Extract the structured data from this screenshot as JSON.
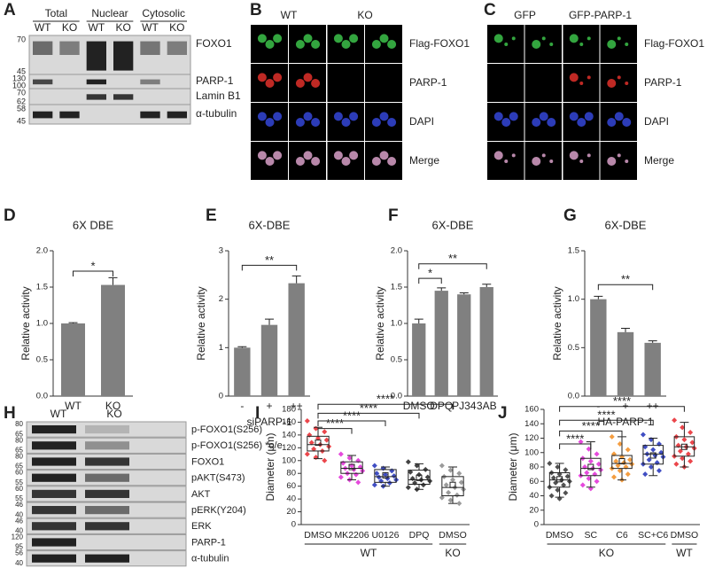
{
  "panel_labels": [
    "A",
    "B",
    "C",
    "D",
    "E",
    "F",
    "G",
    "H",
    "I",
    "J"
  ],
  "blot_A": {
    "headers": [
      "Total",
      "Nuclear",
      "Cytosolic"
    ],
    "lanes": [
      "WT",
      "KO",
      "WT",
      "KO",
      "WT",
      "KO"
    ],
    "rows": [
      {
        "label": "FOXO1",
        "markers": [
          70,
          45
        ]
      },
      {
        "label": "PARP-1",
        "markers": [
          130,
          100
        ]
      },
      {
        "label": "Lamin B1",
        "markers": [
          70,
          62
        ]
      },
      {
        "label": "α-tubulin",
        "markers": [
          58,
          45
        ]
      }
    ]
  },
  "images_B": {
    "columns": [
      "WT",
      "KO"
    ],
    "rows": [
      "Flag-FOXO1",
      "PARP-1",
      "DAPI",
      "Merge"
    ]
  },
  "images_C": {
    "columns": [
      "GFP",
      "GFP-PARP-1"
    ],
    "rows": [
      "Flag-FOXO1",
      "PARP-1",
      "DAPI",
      "Merge"
    ]
  },
  "blot_H": {
    "lanes": [
      "WT",
      "KO"
    ],
    "rows": [
      {
        "label": "p-FOXO1(S256)",
        "markers": [
          80,
          65
        ]
      },
      {
        "label": "p-FOXO1(S256) *o/e",
        "markers": [
          80,
          65
        ]
      },
      {
        "label": "FOXO1",
        "markers": [
          80,
          65
        ]
      },
      {
        "label": "pAKT(S473)",
        "markers": [
          60,
          55
        ]
      },
      {
        "label": "AKT",
        "markers": [
          60,
          55
        ]
      },
      {
        "label": "pERK(Y204)",
        "markers": [
          46,
          40
        ]
      },
      {
        "label": "ERK",
        "markers": [
          46,
          40
        ]
      },
      {
        "label": "PARP-1",
        "markers": [
          120,
          95
        ]
      },
      {
        "label": "α-tubulin",
        "markers": [
          56,
          40
        ]
      }
    ]
  },
  "chart_data": [
    {
      "type": "bar",
      "title": "6X DBE",
      "ylabel": "Relative activity",
      "categories": [
        "WT",
        "KO"
      ],
      "values": [
        1.0,
        1.53
      ],
      "errors": [
        0.01,
        0.1
      ],
      "color": "#808080",
      "ylim": [
        0,
        2.0
      ],
      "yticks": [
        {
          "value": 0,
          "label": "0.0"
        },
        {
          "value": 0.5,
          "label": "0.5"
        },
        {
          "value": 1.0,
          "label": "1.0"
        },
        {
          "value": 1.5,
          "label": "1.5"
        },
        {
          "value": 2.0,
          "label": "2.0"
        }
      ],
      "annotations": [
        "*"
      ]
    },
    {
      "type": "bar",
      "title": "6X-DBE",
      "ylabel": "Relative activity",
      "xlabel": "siPARP-1",
      "categories": [
        "-",
        "+",
        "++"
      ],
      "values": [
        1.0,
        1.47,
        2.33
      ],
      "errors": [
        0.02,
        0.12,
        0.15
      ],
      "color": "#808080",
      "ylim": [
        0,
        3
      ],
      "yticks": [
        0,
        1,
        2,
        3
      ],
      "annotations": [
        "**"
      ]
    },
    {
      "type": "bar",
      "title": "6X-DBE",
      "ylabel": "Relative activity",
      "categories": [
        "DMSO",
        "DPQ",
        "PJ34",
        "3AB"
      ],
      "values": [
        1.0,
        1.45,
        1.4,
        1.5
      ],
      "errors": [
        0.06,
        0.04,
        0.02,
        0.04
      ],
      "color": "#808080",
      "ylim": [
        0,
        2.0
      ],
      "yticks": [
        {
          "value": 0,
          "label": "0.0"
        },
        {
          "value": 0.5,
          "label": "0.5"
        },
        {
          "value": 1.0,
          "label": "1.0"
        },
        {
          "value": 1.5,
          "label": "1.5"
        },
        {
          "value": 2.0,
          "label": "2.0"
        }
      ],
      "annotations": [
        "*",
        "**"
      ]
    },
    {
      "type": "bar",
      "title": "6X-DBE",
      "ylabel": "Relative activity",
      "xlabel": "HA-PARP-1",
      "categories": [
        "-",
        "+",
        "++"
      ],
      "values": [
        1.0,
        0.66,
        0.55
      ],
      "errors": [
        0.03,
        0.04,
        0.02
      ],
      "color": "#808080",
      "ylim": [
        0,
        1.5
      ],
      "yticks": [
        {
          "value": 0,
          "label": "0.0"
        },
        {
          "value": 0.5,
          "label": "0.5"
        },
        {
          "value": 1.0,
          "label": "1.0"
        },
        {
          "value": 1.5,
          "label": "1.5"
        }
      ],
      "annotations": [
        "**"
      ]
    },
    {
      "type": "box",
      "ylabel": "Diameter (μm)",
      "categories": [
        "DMSO",
        "MK2206",
        "U0126",
        "DPQ",
        "DMSO"
      ],
      "groups": [
        "WT",
        "KO"
      ],
      "ylim": [
        0,
        180
      ],
      "yticks": [
        0,
        20,
        40,
        60,
        80,
        100,
        120,
        140,
        160,
        180
      ],
      "annotations": [
        "****",
        "****",
        "****",
        "****"
      ],
      "boxes": [
        {
          "color": "#e8262b",
          "whislo": 103,
          "q1": 115,
          "med": 125,
          "q3": 138,
          "whishi": 152,
          "mean": 128,
          "points": [
            162,
            150,
            145,
            140,
            135,
            132,
            128,
            125,
            122,
            118,
            115,
            110,
            105,
            100
          ]
        },
        {
          "color": "#e02ad6",
          "whislo": 70,
          "q1": 80,
          "med": 88,
          "q3": 98,
          "whishi": 108,
          "mean": 90,
          "points": [
            110,
            104,
            100,
            96,
            92,
            90,
            88,
            86,
            84,
            80,
            78,
            74,
            70,
            66
          ]
        },
        {
          "color": "#1f2fb8",
          "whislo": 60,
          "q1": 66,
          "med": 75,
          "q3": 86,
          "whishi": 90,
          "mean": 77,
          "points": [
            92,
            88,
            84,
            80,
            78,
            76,
            74,
            72,
            70,
            68,
            65,
            62,
            60
          ]
        },
        {
          "color": "#222222",
          "whislo": 55,
          "q1": 63,
          "med": 70,
          "q3": 85,
          "whishi": 95,
          "mean": 73,
          "points": [
            98,
            92,
            86,
            82,
            78,
            74,
            72,
            70,
            68,
            65,
            62,
            58,
            55
          ]
        },
        {
          "color": "#8a8a8a",
          "whislo": 33,
          "q1": 45,
          "med": 58,
          "q3": 75,
          "whishi": 90,
          "mean": 62,
          "points": [
            92,
            85,
            80,
            75,
            70,
            66,
            62,
            58,
            55,
            50,
            46,
            42,
            38,
            33
          ]
        }
      ]
    },
    {
      "type": "box",
      "ylabel": "Diameter (μm)",
      "categories": [
        "DMSO",
        "SC",
        "C6",
        "SC+C6",
        "DMSO"
      ],
      "groups": [
        "KO",
        "WT"
      ],
      "ylim": [
        0,
        160
      ],
      "yticks": [
        0,
        20,
        40,
        60,
        80,
        100,
        120,
        140,
        160
      ],
      "annotations": [
        "****",
        "****",
        "****",
        "****"
      ],
      "boxes": [
        {
          "color": "#333333",
          "whislo": 38,
          "q1": 52,
          "med": 62,
          "q3": 72,
          "whishi": 85,
          "mean": 63,
          "points": [
            85,
            80,
            76,
            72,
            70,
            67,
            65,
            62,
            60,
            58,
            55,
            52,
            48,
            44,
            40,
            36
          ]
        },
        {
          "color": "#e02ad6",
          "whislo": 52,
          "q1": 68,
          "med": 78,
          "q3": 92,
          "whishi": 115,
          "mean": 80,
          "points": [
            115,
            105,
            98,
            92,
            88,
            84,
            80,
            78,
            76,
            72,
            70,
            68,
            64,
            60,
            55,
            50
          ]
        },
        {
          "color": "#f28c1e",
          "whislo": 62,
          "q1": 78,
          "med": 85,
          "q3": 96,
          "whishi": 122,
          "mean": 88,
          "points": [
            122,
            112,
            104,
            98,
            94,
            90,
            88,
            86,
            84,
            82,
            80,
            78,
            75,
            70,
            66,
            62
          ]
        },
        {
          "color": "#1f2fb8",
          "whislo": 68,
          "q1": 84,
          "med": 98,
          "q3": 110,
          "whishi": 120,
          "mean": 96,
          "points": [
            125,
            118,
            112,
            108,
            104,
            100,
            98,
            96,
            94,
            90,
            86,
            84,
            80,
            75,
            70
          ]
        },
        {
          "color": "#e8262b",
          "whislo": 80,
          "q1": 95,
          "med": 108,
          "q3": 122,
          "whishi": 142,
          "mean": 108,
          "points": [
            145,
            135,
            128,
            122,
            118,
            114,
            110,
            108,
            106,
            102,
            98,
            95,
            92,
            88,
            84,
            80
          ]
        }
      ]
    }
  ]
}
